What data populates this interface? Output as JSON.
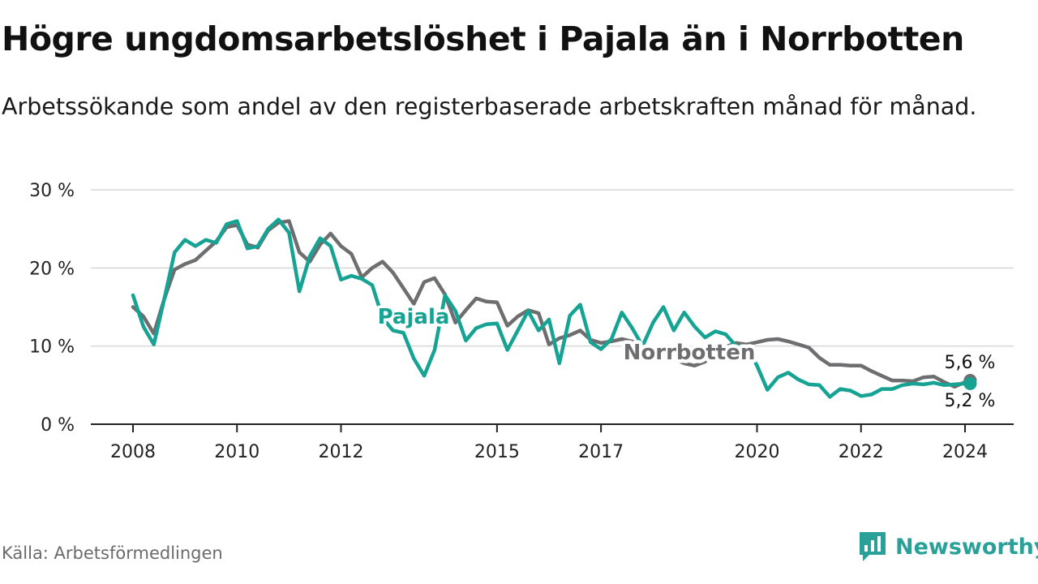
{
  "title": "Högre ungdomsarbetslöshet i Pajala än i Norrbotten",
  "subtitle": "Arbetssökande som andel av den registerbaserade arbetskraften månad för månad.",
  "source": "Källa: Arbetsförmedlingen",
  "brand": "Newsworthy",
  "colors": {
    "pajala": "#16a394",
    "norrbotten": "#6e6e70",
    "grid": "#d7d7d7",
    "axis": "#222222",
    "brand": "#2aa198"
  },
  "chart_data": {
    "type": "line",
    "title": "Högre ungdomsarbetslöshet i Pajala än i Norrbotten",
    "xlabel": "",
    "ylabel": "",
    "ylim": [
      0,
      30
    ],
    "xlim": [
      2007.3,
      2025.25
    ],
    "yticks": [
      0,
      10,
      20,
      30
    ],
    "ytick_labels": [
      "0 %",
      "10 %",
      "20 %",
      "30 %"
    ],
    "xticks": [
      2008,
      2010,
      2012,
      2015,
      2017,
      2020,
      2022,
      2024
    ],
    "xtick_labels": [
      "2008",
      "2010",
      "2012",
      "2015",
      "2017",
      "2020",
      "2022",
      "2024"
    ],
    "series": [
      {
        "name": "Norrbotten",
        "label": "Norrbotten",
        "color": "#6e6e70",
        "end_label": "5,6 %",
        "x": [
          2008.0,
          2008.2,
          2008.4,
          2008.6,
          2008.8,
          2009.0,
          2009.2,
          2009.4,
          2009.6,
          2009.8,
          2010.0,
          2010.2,
          2010.4,
          2010.6,
          2010.8,
          2011.0,
          2011.2,
          2011.4,
          2011.6,
          2011.8,
          2012.0,
          2012.2,
          2012.4,
          2012.6,
          2012.8,
          2013.0,
          2013.2,
          2013.4,
          2013.6,
          2013.8,
          2014.0,
          2014.2,
          2014.4,
          2014.6,
          2014.8,
          2015.0,
          2015.2,
          2015.4,
          2015.6,
          2015.8,
          2016.0,
          2016.2,
          2016.4,
          2016.6,
          2016.8,
          2017.0,
          2017.2,
          2017.4,
          2017.6,
          2017.8,
          2018.0,
          2018.2,
          2018.4,
          2018.6,
          2018.8,
          2019.0,
          2019.2,
          2019.4,
          2019.6,
          2019.8,
          2020.0,
          2020.2,
          2020.4,
          2020.6,
          2020.8,
          2021.0,
          2021.2,
          2021.4,
          2021.6,
          2021.8,
          2022.0,
          2022.2,
          2022.4,
          2022.6,
          2022.8,
          2023.0,
          2023.2,
          2023.4,
          2023.6,
          2023.8,
          2024.0,
          2024.1
        ],
        "values": [
          15.0,
          13.8,
          11.6,
          16.0,
          19.8,
          20.5,
          21.0,
          22.2,
          23.4,
          25.2,
          25.5,
          23.0,
          22.6,
          24.8,
          25.8,
          26.0,
          22.0,
          20.8,
          23.0,
          24.4,
          22.8,
          21.8,
          18.8,
          20.0,
          20.8,
          19.4,
          17.4,
          15.4,
          18.2,
          18.7,
          16.6,
          13.0,
          14.6,
          16.1,
          15.7,
          15.6,
          12.6,
          13.8,
          14.6,
          14.2,
          10.2,
          11.0,
          11.4,
          12.0,
          10.8,
          10.4,
          10.6,
          10.9,
          10.6,
          10.2,
          9.4,
          9.2,
          8.4,
          7.8,
          7.5,
          8.0,
          9.4,
          9.9,
          10.4,
          10.2,
          10.5,
          10.8,
          10.9,
          10.6,
          10.2,
          9.8,
          8.5,
          7.6,
          7.6,
          7.5,
          7.5,
          6.8,
          6.2,
          5.6,
          5.6,
          5.5,
          6.0,
          6.1,
          5.4,
          4.8,
          5.4,
          5.6
        ]
      },
      {
        "name": "Pajala",
        "label": "Pajala",
        "color": "#16a394",
        "end_label": "5,2 %",
        "x": [
          2008.0,
          2008.2,
          2008.4,
          2008.6,
          2008.8,
          2009.0,
          2009.2,
          2009.4,
          2009.6,
          2009.8,
          2010.0,
          2010.2,
          2010.4,
          2010.6,
          2010.8,
          2011.0,
          2011.2,
          2011.4,
          2011.6,
          2011.8,
          2012.0,
          2012.2,
          2012.4,
          2012.6,
          2012.8,
          2013.0,
          2013.2,
          2013.4,
          2013.6,
          2013.8,
          2014.0,
          2014.2,
          2014.4,
          2014.6,
          2014.8,
          2015.0,
          2015.2,
          2015.4,
          2015.6,
          2015.8,
          2016.0,
          2016.2,
          2016.4,
          2016.6,
          2016.8,
          2017.0,
          2017.2,
          2017.4,
          2017.6,
          2017.8,
          2018.0,
          2018.2,
          2018.4,
          2018.6,
          2018.8,
          2019.0,
          2019.2,
          2019.4,
          2019.6,
          2019.8,
          2020.0,
          2020.2,
          2020.4,
          2020.6,
          2020.8,
          2021.0,
          2021.2,
          2021.4,
          2021.6,
          2021.8,
          2022.0,
          2022.2,
          2022.4,
          2022.6,
          2022.8,
          2023.0,
          2023.2,
          2023.4,
          2023.6,
          2023.8,
          2024.0,
          2024.1
        ],
        "values": [
          16.5,
          12.5,
          10.2,
          16.0,
          22.0,
          23.6,
          22.8,
          23.6,
          23.2,
          25.6,
          26.0,
          22.5,
          22.8,
          25.0,
          26.2,
          24.5,
          17.0,
          21.5,
          23.8,
          22.8,
          18.5,
          19.0,
          18.6,
          17.8,
          13.6,
          12.0,
          11.7,
          8.4,
          6.2,
          9.5,
          16.5,
          14.5,
          10.7,
          12.3,
          12.8,
          12.9,
          9.5,
          12.0,
          14.5,
          12.0,
          13.4,
          7.8,
          13.9,
          15.3,
          10.5,
          9.6,
          10.9,
          14.3,
          12.3,
          10.0,
          13.0,
          15.0,
          12.0,
          14.3,
          12.5,
          11.1,
          11.9,
          11.5,
          10.0,
          9.9,
          7.5,
          4.4,
          6.0,
          6.6,
          5.7,
          5.1,
          5.0,
          3.5,
          4.5,
          4.3,
          3.6,
          3.8,
          4.5,
          4.5,
          5.0,
          5.2,
          5.1,
          5.3,
          5.0,
          5.1,
          5.2,
          5.2
        ]
      }
    ]
  }
}
